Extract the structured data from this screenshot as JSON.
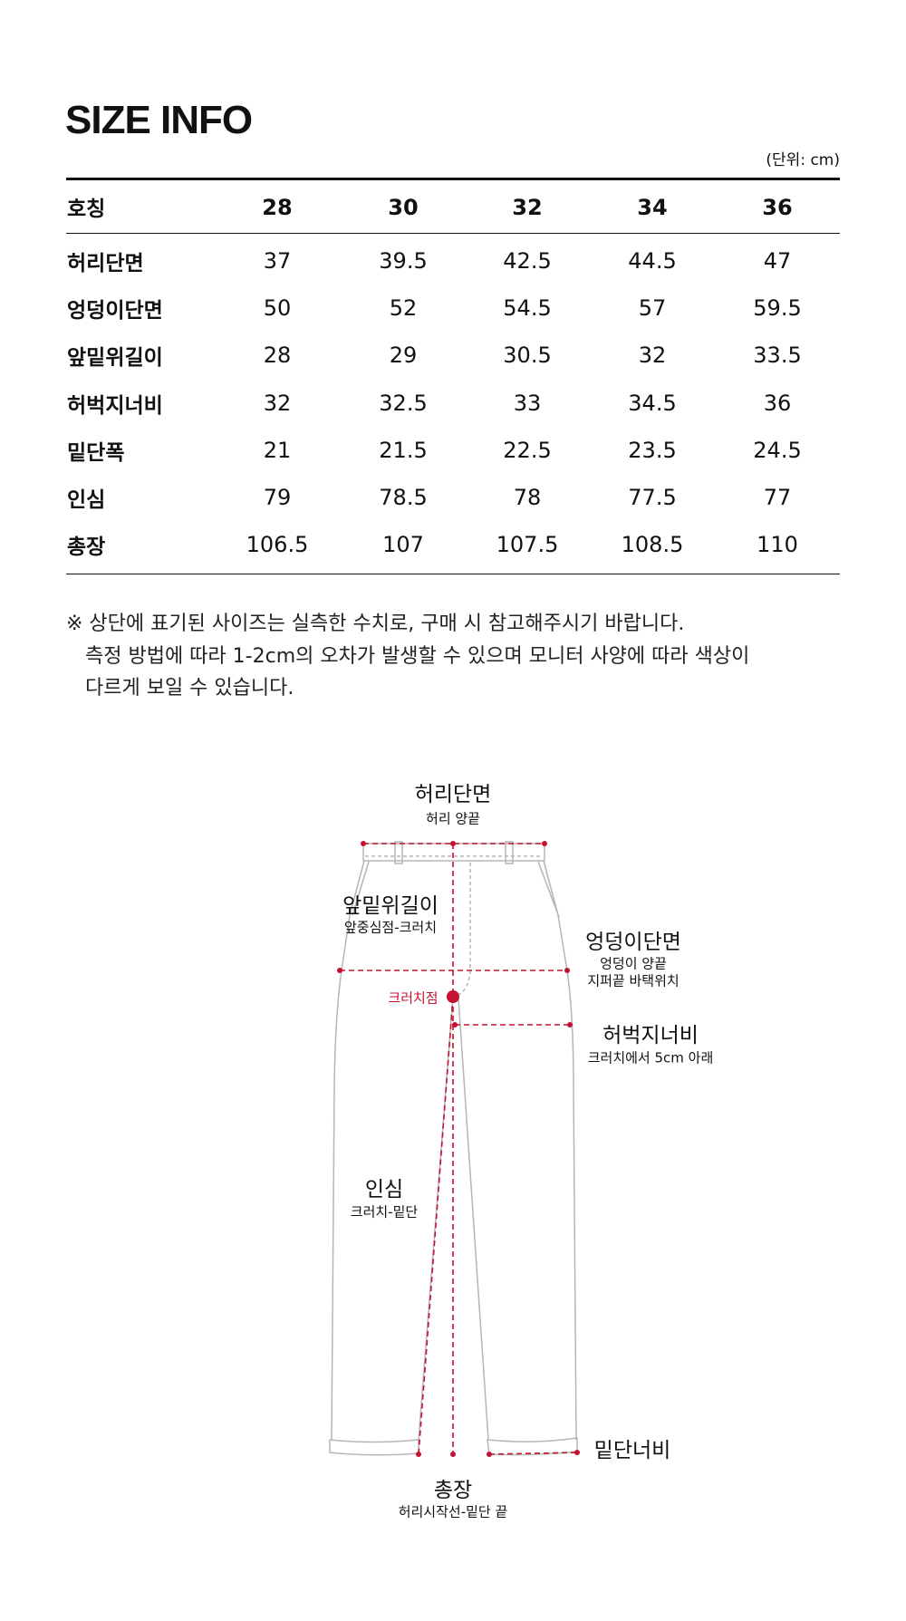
{
  "title": "SIZE INFO",
  "unit": "(단위: cm)",
  "table": {
    "header_label": "호칭",
    "sizes": [
      "28",
      "30",
      "32",
      "34",
      "36"
    ],
    "rows": [
      {
        "label": "허리단면",
        "values": [
          "37",
          "39.5",
          "42.5",
          "44.5",
          "47"
        ]
      },
      {
        "label": "엉덩이단면",
        "values": [
          "50",
          "52",
          "54.5",
          "57",
          "59.5"
        ]
      },
      {
        "label": "앞밑위길이",
        "values": [
          "28",
          "29",
          "30.5",
          "32",
          "33.5"
        ]
      },
      {
        "label": "허벅지너비",
        "values": [
          "32",
          "32.5",
          "33",
          "34.5",
          "36"
        ]
      },
      {
        "label": "밑단폭",
        "values": [
          "21",
          "21.5",
          "22.5",
          "23.5",
          "24.5"
        ]
      },
      {
        "label": "인심",
        "values": [
          "79",
          "78.5",
          "78",
          "77.5",
          "77"
        ]
      },
      {
        "label": "총장",
        "values": [
          "106.5",
          "107",
          "107.5",
          "108.5",
          "110"
        ]
      }
    ]
  },
  "notes": [
    "※ 상단에 표기된 사이즈는 실측한 수치로, 구매 시 참고해주시기 바랍니다.",
    "측정 방법에 따라 1-2cm의 오차가 발생할 수 있으며 모니터 사양에 따라 색상이",
    "다르게 보일 수 있습니다."
  ],
  "diagram": {
    "accent_color": "#c41230",
    "waist": {
      "title": "허리단면",
      "desc": "허리 양끝"
    },
    "rise": {
      "title": "앞밑위길이",
      "desc": "앞중심점-크러치"
    },
    "hip": {
      "title": "엉덩이단면",
      "desc1": "엉덩이 양끝",
      "desc2": "지퍼끝 바택위치"
    },
    "crotch_point": "크러치점",
    "thigh": {
      "title": "허벅지너비",
      "desc": "크러치에서 5cm 아래"
    },
    "inseam": {
      "title": "인심",
      "desc": "크러치-밑단"
    },
    "hem": {
      "title": "밑단너비"
    },
    "length": {
      "title": "총장",
      "desc": "허리시작선-밑단 끝"
    }
  }
}
